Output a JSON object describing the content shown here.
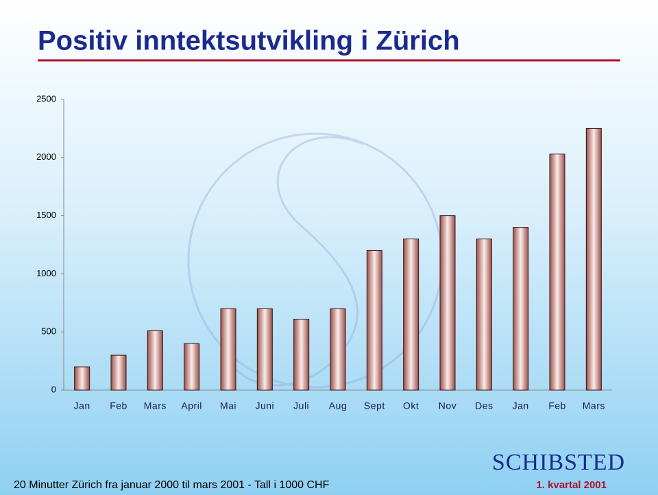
{
  "chart_data": {
    "type": "bar",
    "title": "Positiv inntektsutvikling i Zürich",
    "categories": [
      "Jan",
      "Feb",
      "Mars",
      "April",
      "Mai",
      "Juni",
      "Juli",
      "Aug",
      "Sept",
      "Okt",
      "Nov",
      "Des",
      "Jan",
      "Feb",
      "Mars"
    ],
    "values": [
      200,
      300,
      510,
      400,
      700,
      700,
      610,
      700,
      1200,
      1300,
      1500,
      1300,
      1400,
      2030,
      2250
    ],
    "color": "#9a5048",
    "ylim": [
      0,
      2500
    ],
    "yticks": [
      0,
      500,
      1000,
      1500,
      2000,
      2500
    ],
    "grid": false,
    "footnote": "20 Minutter Zürich fra januar 2000 til mars 2001 - Tall i 1000 CHF",
    "period": "1. kvartal 2001",
    "logo": "SCHIBSTED"
  }
}
